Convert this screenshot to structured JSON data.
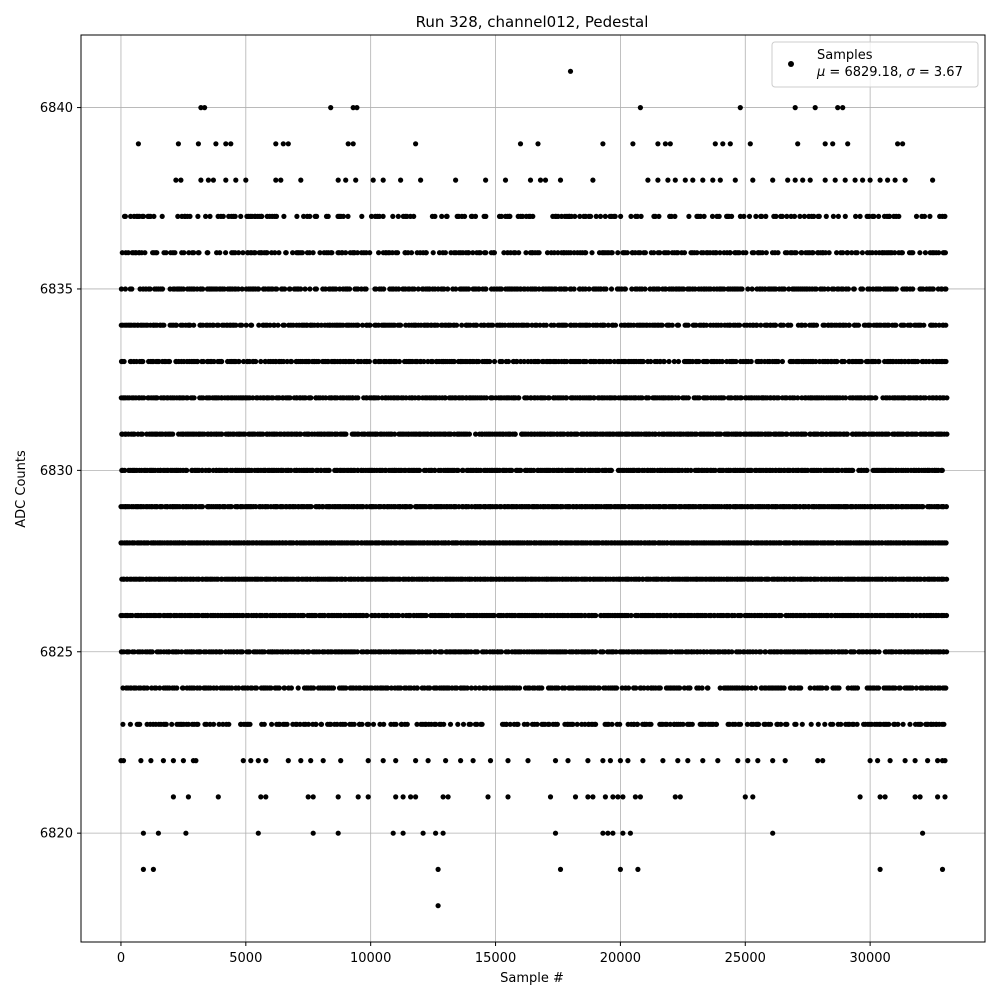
{
  "chart_data": {
    "type": "scatter",
    "title": "Run 328, channel012, Pedestal",
    "xlabel": "Sample #",
    "ylabel": "ADC Counts",
    "xlim": [
      -1600,
      34600
    ],
    "ylim": [
      6817,
      6842
    ],
    "xticks": [
      0,
      5000,
      10000,
      15000,
      20000,
      25000,
      30000
    ],
    "yticks": [
      6820,
      6825,
      6830,
      6835,
      6840
    ],
    "xtick_labels": [
      "0",
      "5000",
      "10000",
      "15000",
      "20000",
      "25000",
      "30000"
    ],
    "ytick_labels": [
      "6820",
      "6825",
      "6830",
      "6835",
      "6840"
    ],
    "grid": true,
    "marker_color": "#000000",
    "legend": {
      "placement": "top-right",
      "entry_label": "Samples",
      "mu_symbol": "μ",
      "sigma_symbol": "σ",
      "mu_value": "6829.18",
      "sigma_value": "3.67"
    },
    "series": [
      {
        "name": "Samples",
        "dense_levels": {
          "x_range": [
            0,
            33100
          ],
          "levels": [
            {
              "y": 6823,
              "density": 0.55
            },
            {
              "y": 6824,
              "density": 0.7
            },
            {
              "y": 6825,
              "density": 0.85
            },
            {
              "y": 6826,
              "density": 0.95
            },
            {
              "y": 6827,
              "density": 1.0
            },
            {
              "y": 6828,
              "density": 1.0
            },
            {
              "y": 6829,
              "density": 0.98
            },
            {
              "y": 6830,
              "density": 0.9
            },
            {
              "y": 6831,
              "density": 0.9
            },
            {
              "y": 6832,
              "density": 0.85
            },
            {
              "y": 6833,
              "density": 0.8
            },
            {
              "y": 6834,
              "density": 0.75
            },
            {
              "y": 6835,
              "density": 0.72
            },
            {
              "y": 6836,
              "density": 0.6
            },
            {
              "y": 6837,
              "density": 0.42
            }
          ]
        },
        "points": [
          [
            18000,
            6841
          ],
          [
            3200,
            6840
          ],
          [
            3350,
            6840
          ],
          [
            8400,
            6840
          ],
          [
            9300,
            6840
          ],
          [
            9450,
            6840
          ],
          [
            20800,
            6840
          ],
          [
            24800,
            6840
          ],
          [
            27000,
            6840
          ],
          [
            27800,
            6840
          ],
          [
            28700,
            6840
          ],
          [
            28900,
            6840
          ],
          [
            700,
            6839
          ],
          [
            2300,
            6839
          ],
          [
            3100,
            6839
          ],
          [
            3800,
            6839
          ],
          [
            4200,
            6839
          ],
          [
            4400,
            6839
          ],
          [
            6200,
            6839
          ],
          [
            6500,
            6839
          ],
          [
            6700,
            6839
          ],
          [
            9100,
            6839
          ],
          [
            9300,
            6839
          ],
          [
            11800,
            6839
          ],
          [
            16000,
            6839
          ],
          [
            16700,
            6839
          ],
          [
            19300,
            6839
          ],
          [
            20500,
            6839
          ],
          [
            21500,
            6839
          ],
          [
            21800,
            6839
          ],
          [
            22000,
            6839
          ],
          [
            23800,
            6839
          ],
          [
            24100,
            6839
          ],
          [
            24400,
            6839
          ],
          [
            25200,
            6839
          ],
          [
            27100,
            6839
          ],
          [
            28200,
            6839
          ],
          [
            28500,
            6839
          ],
          [
            29100,
            6839
          ],
          [
            31100,
            6839
          ],
          [
            31300,
            6839
          ],
          [
            2200,
            6838
          ],
          [
            2400,
            6838
          ],
          [
            3200,
            6838
          ],
          [
            3500,
            6838
          ],
          [
            3700,
            6838
          ],
          [
            4200,
            6838
          ],
          [
            4600,
            6838
          ],
          [
            5000,
            6838
          ],
          [
            6200,
            6838
          ],
          [
            6400,
            6838
          ],
          [
            7200,
            6838
          ],
          [
            8700,
            6838
          ],
          [
            9000,
            6838
          ],
          [
            9400,
            6838
          ],
          [
            10100,
            6838
          ],
          [
            10500,
            6838
          ],
          [
            11200,
            6838
          ],
          [
            12000,
            6838
          ],
          [
            13400,
            6838
          ],
          [
            14600,
            6838
          ],
          [
            15400,
            6838
          ],
          [
            16400,
            6838
          ],
          [
            16800,
            6838
          ],
          [
            17000,
            6838
          ],
          [
            17600,
            6838
          ],
          [
            18900,
            6838
          ],
          [
            21100,
            6838
          ],
          [
            21500,
            6838
          ],
          [
            21900,
            6838
          ],
          [
            22200,
            6838
          ],
          [
            22600,
            6838
          ],
          [
            22900,
            6838
          ],
          [
            23300,
            6838
          ],
          [
            23700,
            6838
          ],
          [
            24000,
            6838
          ],
          [
            24600,
            6838
          ],
          [
            25300,
            6838
          ],
          [
            26100,
            6838
          ],
          [
            26700,
            6838
          ],
          [
            27000,
            6838
          ],
          [
            27300,
            6838
          ],
          [
            27600,
            6838
          ],
          [
            28200,
            6838
          ],
          [
            28600,
            6838
          ],
          [
            29000,
            6838
          ],
          [
            29400,
            6838
          ],
          [
            29700,
            6838
          ],
          [
            30000,
            6838
          ],
          [
            30400,
            6838
          ],
          [
            30700,
            6838
          ],
          [
            31000,
            6838
          ],
          [
            31400,
            6838
          ],
          [
            32500,
            6838
          ],
          [
            900,
            6819
          ],
          [
            1300,
            6819
          ],
          [
            12700,
            6819
          ],
          [
            17600,
            6819
          ],
          [
            20000,
            6819
          ],
          [
            20700,
            6819
          ],
          [
            30400,
            6819
          ],
          [
            32900,
            6819
          ],
          [
            12700,
            6818
          ],
          [
            900,
            6820
          ],
          [
            1500,
            6820
          ],
          [
            2600,
            6820
          ],
          [
            5500,
            6820
          ],
          [
            7700,
            6820
          ],
          [
            8700,
            6820
          ],
          [
            10900,
            6820
          ],
          [
            11300,
            6820
          ],
          [
            12100,
            6820
          ],
          [
            12600,
            6820
          ],
          [
            12900,
            6820
          ],
          [
            17400,
            6820
          ],
          [
            19300,
            6820
          ],
          [
            19500,
            6820
          ],
          [
            19700,
            6820
          ],
          [
            20100,
            6820
          ],
          [
            20400,
            6820
          ],
          [
            26100,
            6820
          ],
          [
            32100,
            6820
          ],
          [
            2100,
            6821
          ],
          [
            2700,
            6821
          ],
          [
            3900,
            6821
          ],
          [
            5600,
            6821
          ],
          [
            5800,
            6821
          ],
          [
            7500,
            6821
          ],
          [
            7700,
            6821
          ],
          [
            8700,
            6821
          ],
          [
            9500,
            6821
          ],
          [
            9900,
            6821
          ],
          [
            11000,
            6821
          ],
          [
            11300,
            6821
          ],
          [
            11600,
            6821
          ],
          [
            11800,
            6821
          ],
          [
            12900,
            6821
          ],
          [
            13100,
            6821
          ],
          [
            14700,
            6821
          ],
          [
            15500,
            6821
          ],
          [
            17200,
            6821
          ],
          [
            18200,
            6821
          ],
          [
            18700,
            6821
          ],
          [
            18900,
            6821
          ],
          [
            19400,
            6821
          ],
          [
            19700,
            6821
          ],
          [
            19900,
            6821
          ],
          [
            20100,
            6821
          ],
          [
            20600,
            6821
          ],
          [
            20800,
            6821
          ],
          [
            22200,
            6821
          ],
          [
            22400,
            6821
          ],
          [
            25000,
            6821
          ],
          [
            25300,
            6821
          ],
          [
            29600,
            6821
          ],
          [
            30400,
            6821
          ],
          [
            30600,
            6821
          ],
          [
            31800,
            6821
          ],
          [
            32000,
            6821
          ],
          [
            32700,
            6821
          ],
          [
            33000,
            6821
          ],
          [
            0,
            6822
          ],
          [
            100,
            6822
          ],
          [
            800,
            6822
          ],
          [
            1200,
            6822
          ],
          [
            1700,
            6822
          ],
          [
            2100,
            6822
          ],
          [
            2500,
            6822
          ],
          [
            2900,
            6822
          ],
          [
            3000,
            6822
          ],
          [
            4900,
            6822
          ],
          [
            5200,
            6822
          ],
          [
            5500,
            6822
          ],
          [
            5800,
            6822
          ],
          [
            6700,
            6822
          ],
          [
            7200,
            6822
          ],
          [
            7600,
            6822
          ],
          [
            8100,
            6822
          ],
          [
            8800,
            6822
          ],
          [
            9900,
            6822
          ],
          [
            10500,
            6822
          ],
          [
            11000,
            6822
          ],
          [
            11800,
            6822
          ],
          [
            12300,
            6822
          ],
          [
            13000,
            6822
          ],
          [
            13600,
            6822
          ],
          [
            14100,
            6822
          ],
          [
            14800,
            6822
          ],
          [
            15500,
            6822
          ],
          [
            16300,
            6822
          ],
          [
            17400,
            6822
          ],
          [
            17900,
            6822
          ],
          [
            18700,
            6822
          ],
          [
            19300,
            6822
          ],
          [
            19600,
            6822
          ],
          [
            20000,
            6822
          ],
          [
            20300,
            6822
          ],
          [
            20900,
            6822
          ],
          [
            21700,
            6822
          ],
          [
            22300,
            6822
          ],
          [
            22700,
            6822
          ],
          [
            23300,
            6822
          ],
          [
            23900,
            6822
          ],
          [
            24700,
            6822
          ],
          [
            25100,
            6822
          ],
          [
            25500,
            6822
          ],
          [
            26100,
            6822
          ],
          [
            26600,
            6822
          ],
          [
            27900,
            6822
          ],
          [
            28100,
            6822
          ],
          [
            30000,
            6822
          ],
          [
            30300,
            6822
          ],
          [
            30800,
            6822
          ],
          [
            31400,
            6822
          ],
          [
            31800,
            6822
          ],
          [
            32300,
            6822
          ],
          [
            32700,
            6822
          ],
          [
            32900,
            6822
          ],
          [
            33000,
            6822
          ]
        ]
      }
    ]
  }
}
